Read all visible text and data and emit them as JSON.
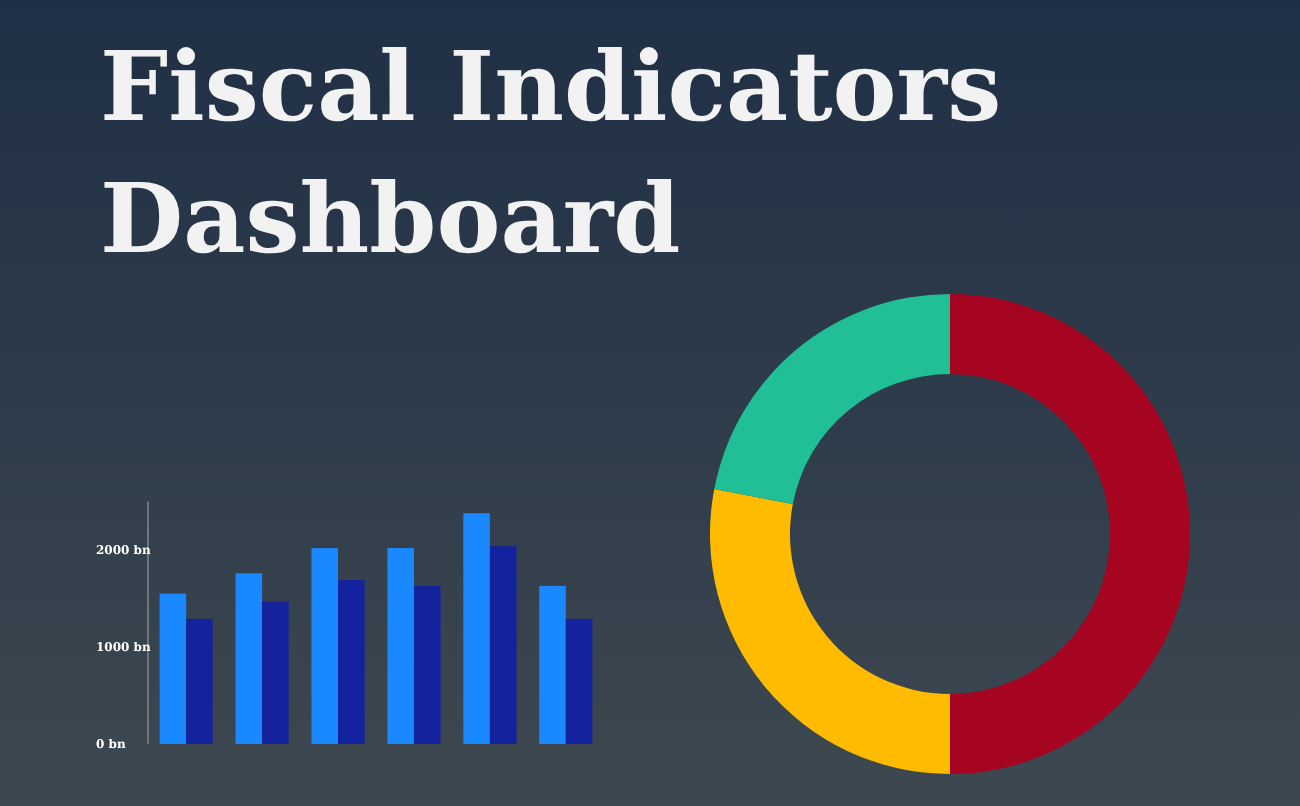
{
  "chart_data": [
    {
      "type": "bar",
      "title": "Fiscal Indicators Dashboard",
      "categories": [
        null,
        null,
        null,
        null,
        null,
        null
      ],
      "series": [
        {
          "color": "#1a88ff",
          "values": [
            1550,
            1760,
            2020,
            2020,
            2380,
            1630
          ]
        },
        {
          "color": "#14229e",
          "values": [
            1290,
            1470,
            1690,
            1630,
            2040,
            1290
          ]
        }
      ],
      "ylim": [
        0,
        2500
      ],
      "yticks": [
        {
          "value": 0,
          "label": "0 bn"
        },
        {
          "value": 1000,
          "label": "1000 bn"
        },
        {
          "value": 2000,
          "label": "2000 bn"
        }
      ],
      "grid": false
    },
    {
      "type": "donut",
      "categories": [
        null,
        null,
        null
      ],
      "values": [
        50,
        28,
        22
      ],
      "colors": [
        "#a50521",
        "#ffbb00",
        "#20bf95"
      ]
    }
  ]
}
